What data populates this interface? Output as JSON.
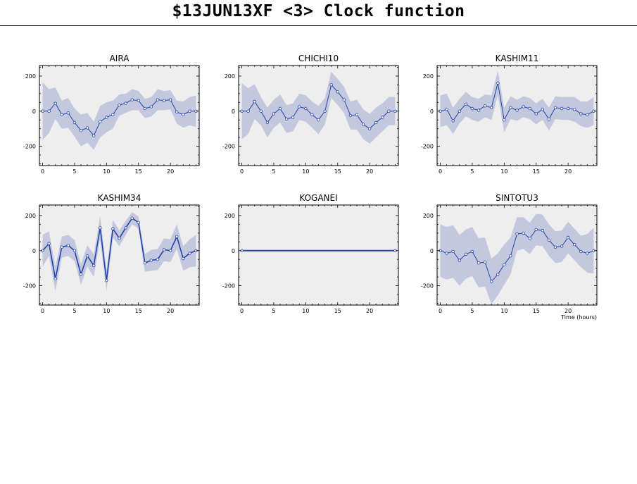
{
  "header": {
    "title": "$13JUN13XF <3>  Clock function"
  },
  "colors": {
    "plot_background": "#eeeeee",
    "band_fill": "#c4c8de",
    "line": "#2244aa",
    "marker_fill": "#ffffff"
  },
  "chart_data": [
    {
      "type": "line",
      "title": "AIRA",
      "xlabel": "",
      "x": [
        0,
        1,
        2,
        3,
        4,
        5,
        6,
        7,
        8,
        9,
        10,
        11,
        12,
        13,
        14,
        15,
        16,
        17,
        18,
        19,
        20,
        21,
        22,
        23,
        24
      ],
      "y": [
        0,
        0,
        45,
        -20,
        -10,
        -65,
        -110,
        -95,
        -140,
        -60,
        -35,
        -20,
        35,
        45,
        65,
        60,
        15,
        25,
        65,
        60,
        65,
        -5,
        -20,
        0,
        0
      ],
      "band": [
        165,
        125,
        90,
        80,
        85,
        80,
        90,
        85,
        80,
        90,
        85,
        80,
        60,
        55,
        60,
        55,
        55,
        55,
        60,
        55,
        55,
        65,
        75,
        80,
        90
      ],
      "xticks": [
        0,
        5,
        10,
        15,
        20
      ],
      "yticks": [
        -200,
        0,
        200
      ],
      "xlim": [
        -0.5,
        24.5
      ],
      "ylim": [
        -310,
        260
      ]
    },
    {
      "type": "line",
      "title": "CHICHI10",
      "xlabel": "",
      "x": [
        0,
        1,
        2,
        3,
        4,
        5,
        6,
        7,
        8,
        9,
        10,
        11,
        12,
        13,
        14,
        15,
        16,
        17,
        18,
        19,
        20,
        21,
        22,
        23,
        24
      ],
      "y": [
        0,
        0,
        55,
        0,
        -65,
        -15,
        15,
        -45,
        -35,
        25,
        15,
        -20,
        -50,
        0,
        150,
        110,
        65,
        -25,
        -20,
        -75,
        -100,
        -65,
        -35,
        0,
        0
      ],
      "band": [
        160,
        130,
        100,
        80,
        85,
        80,
        80,
        80,
        80,
        75,
        75,
        75,
        80,
        75,
        75,
        75,
        75,
        80,
        85,
        85,
        85,
        85,
        80,
        80,
        80
      ],
      "xticks": [
        0,
        5,
        10,
        15,
        20
      ],
      "yticks": [
        -200,
        0,
        200
      ],
      "xlim": [
        -0.5,
        24.5
      ],
      "ylim": [
        -310,
        260
      ]
    },
    {
      "type": "line",
      "title": "KASHIM11",
      "xlabel": "",
      "x": [
        0,
        1,
        2,
        3,
        4,
        5,
        6,
        7,
        8,
        9,
        10,
        11,
        12,
        13,
        14,
        15,
        16,
        17,
        18,
        19,
        20,
        21,
        22,
        23,
        24
      ],
      "y": [
        0,
        10,
        -55,
        0,
        40,
        15,
        5,
        30,
        20,
        160,
        -50,
        20,
        5,
        25,
        15,
        -15,
        10,
        -45,
        20,
        15,
        15,
        10,
        -15,
        -20,
        0
      ],
      "band": [
        90,
        90,
        75,
        70,
        70,
        65,
        65,
        65,
        70,
        70,
        70,
        65,
        60,
        60,
        60,
        60,
        60,
        65,
        65,
        65,
        65,
        70,
        70,
        75,
        80
      ],
      "xticks": [
        0,
        5,
        10,
        15,
        20
      ],
      "yticks": [
        -200,
        0,
        200
      ],
      "xlim": [
        -0.5,
        24.5
      ],
      "ylim": [
        -310,
        260
      ]
    },
    {
      "type": "line",
      "title": "KASHIM34",
      "xlabel": "",
      "x": [
        0,
        1,
        2,
        3,
        4,
        5,
        6,
        7,
        8,
        9,
        10,
        11,
        12,
        13,
        14,
        15,
        16,
        17,
        18,
        19,
        20,
        21,
        22,
        23,
        24
      ],
      "y": [
        0,
        40,
        -160,
        20,
        30,
        0,
        -135,
        -30,
        -85,
        130,
        -170,
        125,
        70,
        130,
        185,
        160,
        -70,
        -55,
        -50,
        5,
        0,
        80,
        -45,
        -15,
        0
      ],
      "band": [
        90,
        70,
        70,
        60,
        60,
        60,
        60,
        60,
        65,
        65,
        60,
        50,
        45,
        40,
        35,
        35,
        50,
        60,
        60,
        65,
        65,
        70,
        70,
        80,
        90
      ],
      "xticks": [
        0,
        5,
        10,
        15,
        20
      ],
      "yticks": [
        -200,
        0,
        200
      ],
      "xlim": [
        -0.5,
        24.5
      ],
      "ylim": [
        -310,
        260
      ]
    },
    {
      "type": "line",
      "title": "KOGANEI",
      "xlabel": "",
      "x": [
        0,
        24
      ],
      "y": [
        0,
        0
      ],
      "band": [
        0,
        0
      ],
      "xticks": [
        0,
        5,
        10,
        15,
        20
      ],
      "yticks": [
        -200,
        0,
        200
      ],
      "xlim": [
        -0.5,
        24.5
      ],
      "ylim": [
        -310,
        260
      ]
    },
    {
      "type": "line",
      "title": "SINTOTU3",
      "xlabel": "Time (hours)",
      "x": [
        0,
        1,
        2,
        3,
        4,
        5,
        6,
        7,
        8,
        9,
        10,
        11,
        12,
        13,
        14,
        15,
        16,
        17,
        18,
        19,
        20,
        21,
        22,
        23,
        24
      ],
      "y": [
        0,
        -15,
        -5,
        -55,
        -20,
        -5,
        -70,
        -65,
        -175,
        -135,
        -80,
        -30,
        95,
        100,
        70,
        120,
        115,
        60,
        20,
        25,
        75,
        35,
        -5,
        -15,
        0
      ],
      "band": [
        150,
        150,
        150,
        145,
        140,
        140,
        140,
        140,
        130,
        120,
        115,
        105,
        95,
        90,
        90,
        90,
        90,
        90,
        90,
        90,
        90,
        90,
        90,
        110,
        130
      ],
      "xticks": [
        0,
        5,
        10,
        15,
        20
      ],
      "yticks": [
        -200,
        0,
        200
      ],
      "xlim": [
        -0.5,
        24.5
      ],
      "ylim": [
        -310,
        260
      ]
    }
  ]
}
